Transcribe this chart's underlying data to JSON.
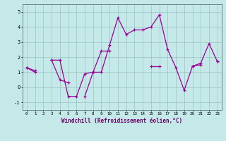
{
  "xlabel": "Windchill (Refroidissement éolien,°C)",
  "bg_color": "#c5e8e8",
  "line_color": "#990099",
  "grid_color": "#99c4c4",
  "xlim": [
    -0.5,
    23.5
  ],
  "ylim": [
    -1.5,
    5.5
  ],
  "yticks": [
    -1,
    0,
    1,
    2,
    3,
    4,
    5
  ],
  "xticks": [
    0,
    1,
    2,
    3,
    4,
    5,
    6,
    7,
    8,
    9,
    10,
    11,
    12,
    13,
    14,
    15,
    16,
    17,
    18,
    19,
    20,
    21,
    22,
    23
  ],
  "series1": [
    1.3,
    1.0,
    null,
    1.8,
    1.8,
    -0.6,
    -0.6,
    0.9,
    1.0,
    1.0,
    2.8,
    4.6,
    3.5,
    3.8,
    3.8,
    4.0,
    4.8,
    2.5,
    1.3,
    -0.2,
    1.4,
    1.6,
    2.9,
    1.7
  ],
  "series2": [
    1.3,
    1.1,
    null,
    1.8,
    0.5,
    0.3,
    null,
    -0.6,
    1.0,
    2.4,
    2.4,
    null,
    null,
    null,
    null,
    null,
    null,
    null,
    null,
    null,
    null,
    null,
    null,
    null
  ],
  "series3": [
    null,
    null,
    null,
    null,
    null,
    null,
    null,
    null,
    null,
    null,
    null,
    null,
    null,
    null,
    null,
    1.4,
    1.4,
    null,
    null,
    null,
    1.4,
    1.5,
    null,
    1.7
  ]
}
